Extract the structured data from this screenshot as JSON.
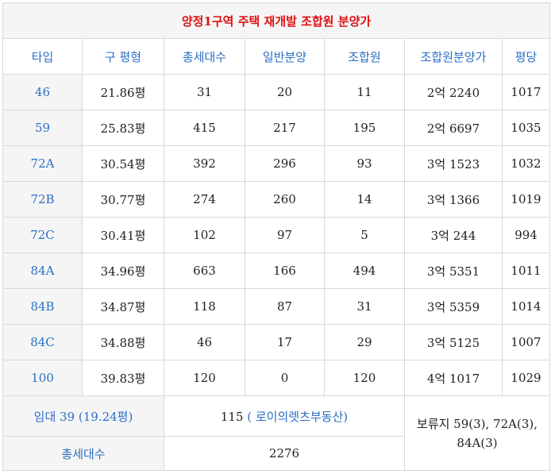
{
  "title": "양정1구역 주택 재개발 조합원 분양가",
  "headers": [
    "타입",
    "구 평형",
    "총세대수",
    "일반분양",
    "조합원",
    "조합원분양가",
    "평당"
  ],
  "rows": [
    [
      "46",
      "21.86평",
      "31",
      "20",
      "11",
      "2억 2240",
      "1017"
    ],
    [
      "59",
      "25.83평",
      "415",
      "217",
      "195",
      "2억 6697",
      "1035"
    ],
    [
      "72A",
      "30.54평",
      "392",
      "296",
      "93",
      "3억 1523",
      "1032"
    ],
    [
      "72B",
      "30.77평",
      "274",
      "260",
      "14",
      "3억 1366",
      "1019"
    ],
    [
      "72C",
      "30.41평",
      "102",
      "97",
      "5",
      "3억 244",
      "994"
    ],
    [
      "84A",
      "34.96평",
      "663",
      "166",
      "494",
      "3억 5351",
      "1011"
    ],
    [
      "84B",
      "34.87평",
      "118",
      "87",
      "31",
      "3억 5359",
      "1014"
    ],
    [
      "84C",
      "34.88평",
      "46",
      "17",
      "29",
      "3억 5125",
      "1007"
    ],
    [
      "100",
      "39.83평",
      "120",
      "0",
      "120",
      "4억 1017",
      "1029"
    ]
  ],
  "footer": {
    "rental_label": "임대 39 (19.24평)",
    "rental_count": "115",
    "realtor_link": "( 로이의렛츠부동산)",
    "reserved": "보류지 59(3), 72A(3), 84A(3)",
    "total_label": "총세대수",
    "total_value": "2276"
  }
}
